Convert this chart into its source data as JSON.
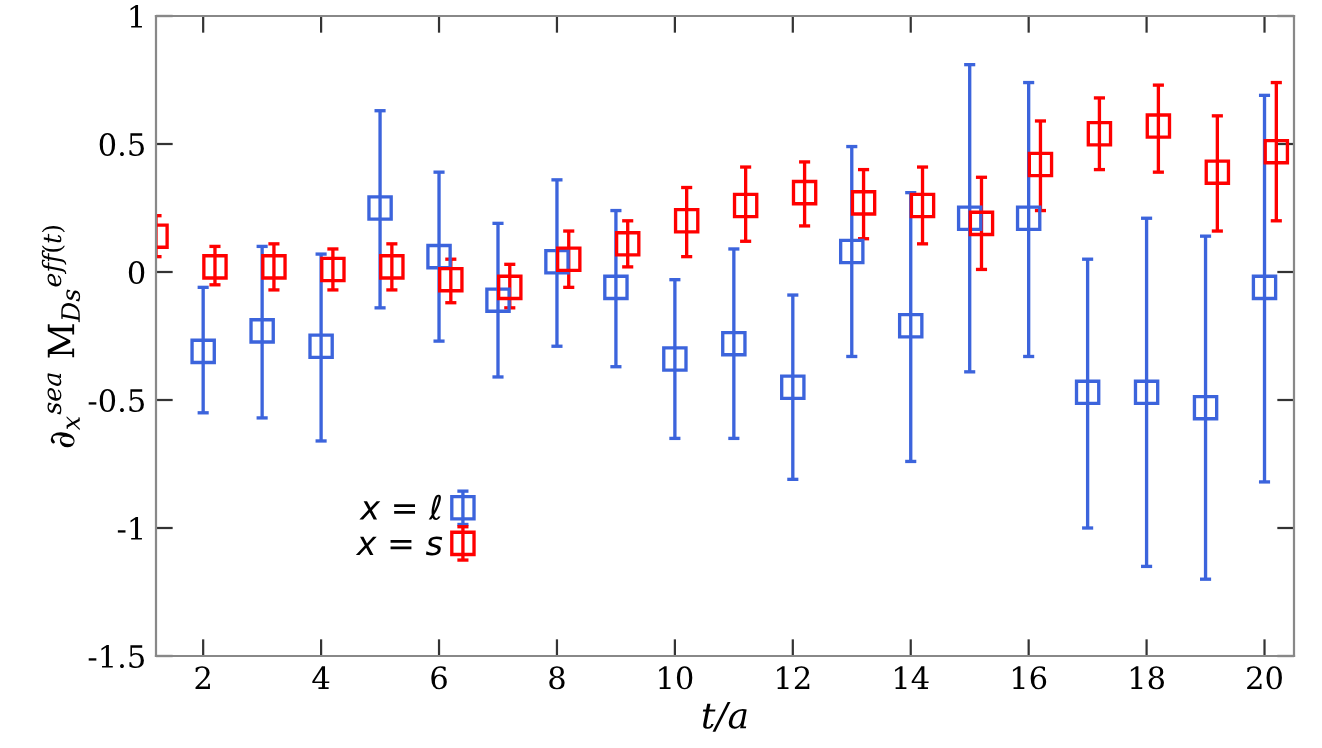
{
  "chart_data": {
    "type": "scatter",
    "xlabel": "t/a",
    "ylabel": "∂$_{x}$$^{sea}$ M$_{Ds}$$^{eff(t)}$",
    "xlim": [
      1.2,
      20.5
    ],
    "ylim": [
      -1.5,
      1
    ],
    "xticks": [
      2,
      4,
      6,
      8,
      10,
      12,
      14,
      16,
      18,
      20
    ],
    "yticks": [
      -1.5,
      -1,
      -0.5,
      0,
      0.5,
      1
    ],
    "grid": false,
    "legend": "bottom left",
    "marker": "square",
    "series": [
      {
        "name": "x = ℓ",
        "color": "#3c64dc",
        "x": [
          2,
          3,
          4,
          5,
          6,
          7,
          8,
          9,
          10,
          11,
          12,
          13,
          14,
          15,
          16,
          17,
          18,
          19,
          20
        ],
        "values": [
          -0.31,
          -0.23,
          -0.29,
          0.25,
          0.06,
          -0.11,
          0.04,
          -0.06,
          -0.34,
          -0.28,
          -0.45,
          0.08,
          -0.21,
          0.21,
          0.21,
          -0.47,
          -0.47,
          -0.53,
          -0.06
        ],
        "errors": [
          [
            -0.55,
            -0.06
          ],
          [
            -0.57,
            0.1
          ],
          [
            -0.66,
            0.07
          ],
          [
            -0.14,
            0.63
          ],
          [
            -0.27,
            0.39
          ],
          [
            -0.41,
            0.19
          ],
          [
            -0.29,
            0.36
          ],
          [
            -0.37,
            0.24
          ],
          [
            -0.65,
            -0.03
          ],
          [
            -0.65,
            0.09
          ],
          [
            -0.81,
            -0.09
          ],
          [
            -0.33,
            0.49
          ],
          [
            -0.74,
            0.31
          ],
          [
            -0.39,
            0.81
          ],
          [
            -0.33,
            0.74
          ],
          [
            -1.0,
            0.05
          ],
          [
            -1.15,
            0.21
          ],
          [
            -1.2,
            0.14
          ],
          [
            -0.82,
            0.69
          ]
        ]
      },
      {
        "name": "x = s",
        "color": "#ff0000",
        "x": [
          1.2,
          2.2,
          3.2,
          4.2,
          5.2,
          6.2,
          7.2,
          8.2,
          9.2,
          10.2,
          11.2,
          12.2,
          13.2,
          14.2,
          15.2,
          16.2,
          17.2,
          18.2,
          19.2,
          20.2
        ],
        "values": [
          0.14,
          0.02,
          0.02,
          0.01,
          0.02,
          -0.03,
          -0.06,
          0.05,
          0.11,
          0.2,
          0.26,
          0.31,
          0.27,
          0.26,
          0.19,
          0.42,
          0.54,
          0.57,
          0.39,
          0.47
        ],
        "errors": [
          [
            0.06,
            0.22
          ],
          [
            -0.05,
            0.1
          ],
          [
            -0.07,
            0.11
          ],
          [
            -0.07,
            0.09
          ],
          [
            -0.07,
            0.11
          ],
          [
            -0.12,
            0.05
          ],
          [
            -0.14,
            0.03
          ],
          [
            -0.06,
            0.16
          ],
          [
            0.02,
            0.2
          ],
          [
            0.06,
            0.33
          ],
          [
            0.12,
            0.41
          ],
          [
            0.18,
            0.43
          ],
          [
            0.13,
            0.4
          ],
          [
            0.11,
            0.41
          ],
          [
            0.01,
            0.37
          ],
          [
            0.24,
            0.59
          ],
          [
            0.4,
            0.68
          ],
          [
            0.39,
            0.73
          ],
          [
            0.16,
            0.61
          ],
          [
            0.2,
            0.74
          ]
        ]
      }
    ]
  }
}
